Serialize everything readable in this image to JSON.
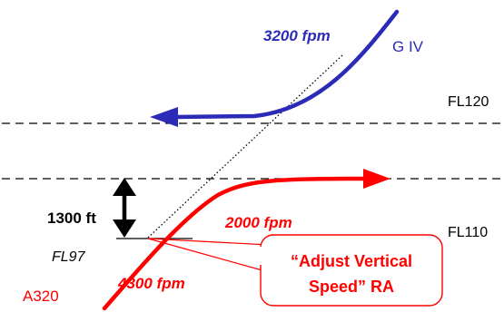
{
  "aircraft": {
    "upper": {
      "name": "G IV",
      "rate": "3200 fpm",
      "color": "#2b2bb8"
    },
    "lower": {
      "name": "A320",
      "rate_climb": "4300 fpm",
      "rate_level": "2000 fpm",
      "color": "#ff0000"
    }
  },
  "levels": {
    "upper": "FL120",
    "lower": "FL110",
    "crossing": "FL97"
  },
  "separation": "1300 ft",
  "callout": {
    "line1": "“Adjust Vertical",
    "line2": "Speed” RA"
  },
  "colors": {
    "guide": "#000000",
    "callout_text": "#ff0000"
  }
}
